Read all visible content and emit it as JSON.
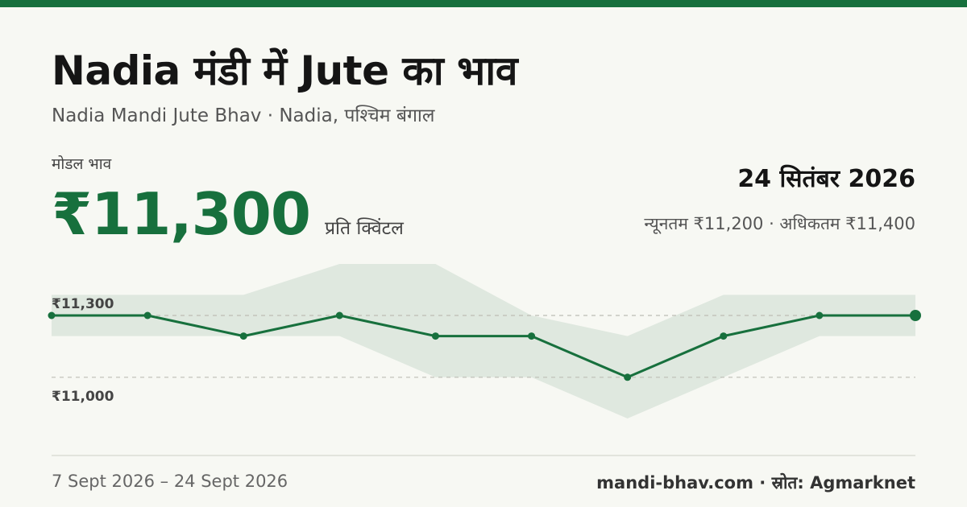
{
  "header": {
    "title": "Nadia मंडी में Jute का भाव",
    "subtitle": "Nadia Mandi Jute Bhav · Nadia, पश्चिम बंगाल"
  },
  "price": {
    "label": "मोडल भाव",
    "value": "₹11,300",
    "unit": "प्रति क्विंटल"
  },
  "summary": {
    "date": "24 सितंबर 2026",
    "minmax": "न्यूनतम ₹11,200 · अधिकतम ₹11,400"
  },
  "footer": {
    "range": "7 Sept 2026 – 24 Sept 2026",
    "source": "mandi-bhav.com · स्रोत: Agmarknet"
  },
  "colors": {
    "accent": "#17703d",
    "band": "#dfe8df",
    "background": "#f7f8f3"
  },
  "chart_data": {
    "type": "line",
    "x": [
      1,
      2,
      3,
      4,
      5,
      6,
      7,
      8,
      9,
      10
    ],
    "series": [
      {
        "values": [
          11300,
          11300,
          11200,
          11300,
          11200,
          11200,
          11000,
          11200,
          11300,
          11300
        ]
      }
    ],
    "band_min": [
      11200,
      11200,
      11200,
      11200,
      11000,
      11000,
      10800,
      11000,
      11200,
      11200
    ],
    "band_max": [
      11400,
      11400,
      11400,
      11550,
      11550,
      11300,
      11200,
      11400,
      11400,
      11400
    ],
    "ticks": [
      {
        "value": 11300,
        "label": "₹11,300"
      },
      {
        "value": 11000,
        "label": "₹11,000"
      }
    ],
    "ylim": [
      10800,
      11550
    ],
    "grid": "dashed at tick values",
    "legend": "none"
  }
}
